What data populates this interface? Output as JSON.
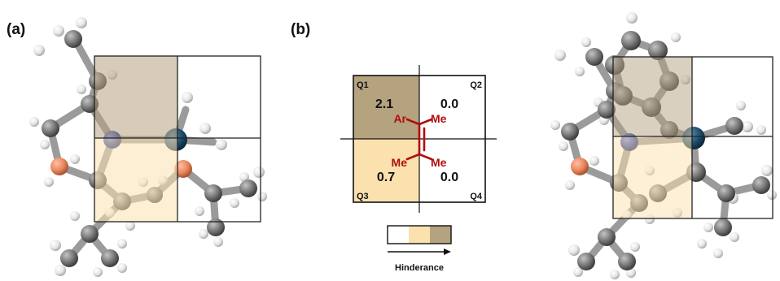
{
  "panels": {
    "a": "(a)",
    "b": "(b)"
  },
  "quadrants": {
    "q1": {
      "label": "Q1",
      "value": "2.1"
    },
    "q2": {
      "label": "Q2",
      "value": "0.0"
    },
    "q3": {
      "label": "Q3",
      "value": "0.7"
    },
    "q4": {
      "label": "Q4",
      "value": "0.0"
    }
  },
  "substituents": {
    "top_left": "Ar",
    "top_right": "Me",
    "bottom_left": "Me",
    "bottom_right": "Me"
  },
  "legend": {
    "label": "Hinderance"
  },
  "colors": {
    "q1_fill": "#b5a27f",
    "q3_fill": "#fbe1ae",
    "substituent": "#b00e0e",
    "atom_carbon": "#6e6e6e",
    "atom_hydrogen": "#eeeeee",
    "atom_nitrogen": "#2e3f9c",
    "atom_oxygen": "#e9865f",
    "atom_metal": "#1c4d6e"
  }
}
